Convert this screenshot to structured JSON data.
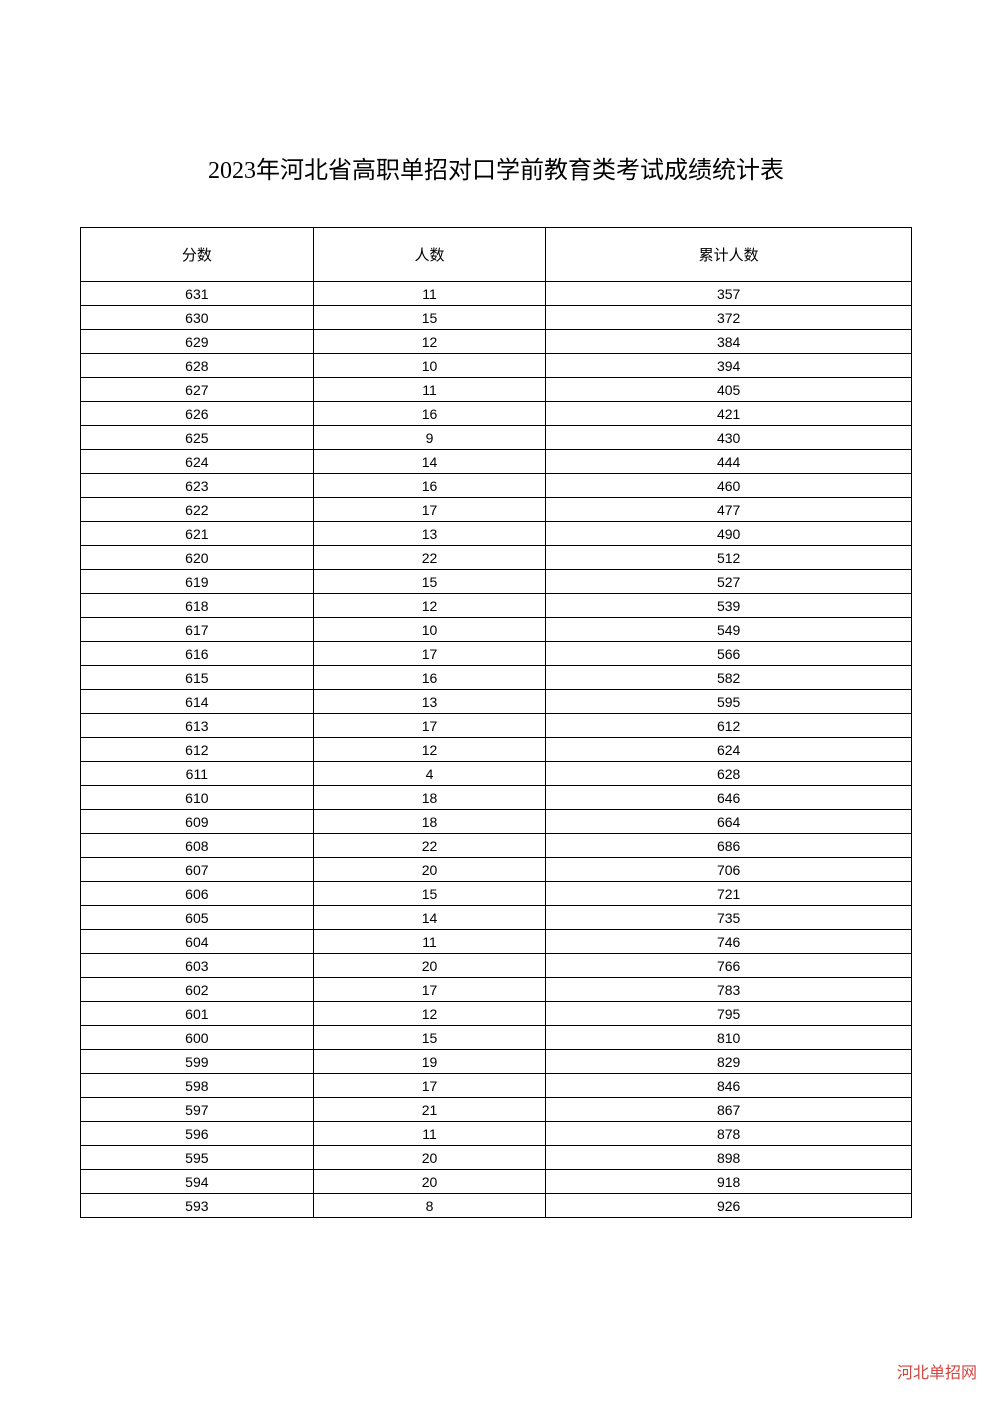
{
  "title": "2023年河北省高职单招对口学前教育类考试成绩统计表",
  "table": {
    "type": "table",
    "columns": [
      "分数",
      "人数",
      "累计人数"
    ],
    "column_widths": [
      "28%",
      "28%",
      "44%"
    ],
    "header_fontsize": 15,
    "cell_fontsize": 14,
    "border_color": "#000000",
    "background_color": "#ffffff",
    "text_color": "#000000",
    "rows": [
      [
        "631",
        "11",
        "357"
      ],
      [
        "630",
        "15",
        "372"
      ],
      [
        "629",
        "12",
        "384"
      ],
      [
        "628",
        "10",
        "394"
      ],
      [
        "627",
        "11",
        "405"
      ],
      [
        "626",
        "16",
        "421"
      ],
      [
        "625",
        "9",
        "430"
      ],
      [
        "624",
        "14",
        "444"
      ],
      [
        "623",
        "16",
        "460"
      ],
      [
        "622",
        "17",
        "477"
      ],
      [
        "621",
        "13",
        "490"
      ],
      [
        "620",
        "22",
        "512"
      ],
      [
        "619",
        "15",
        "527"
      ],
      [
        "618",
        "12",
        "539"
      ],
      [
        "617",
        "10",
        "549"
      ],
      [
        "616",
        "17",
        "566"
      ],
      [
        "615",
        "16",
        "582"
      ],
      [
        "614",
        "13",
        "595"
      ],
      [
        "613",
        "17",
        "612"
      ],
      [
        "612",
        "12",
        "624"
      ],
      [
        "611",
        "4",
        "628"
      ],
      [
        "610",
        "18",
        "646"
      ],
      [
        "609",
        "18",
        "664"
      ],
      [
        "608",
        "22",
        "686"
      ],
      [
        "607",
        "20",
        "706"
      ],
      [
        "606",
        "15",
        "721"
      ],
      [
        "605",
        "14",
        "735"
      ],
      [
        "604",
        "11",
        "746"
      ],
      [
        "603",
        "20",
        "766"
      ],
      [
        "602",
        "17",
        "783"
      ],
      [
        "601",
        "12",
        "795"
      ],
      [
        "600",
        "15",
        "810"
      ],
      [
        "599",
        "19",
        "829"
      ],
      [
        "598",
        "17",
        "846"
      ],
      [
        "597",
        "21",
        "867"
      ],
      [
        "596",
        "11",
        "878"
      ],
      [
        "595",
        "20",
        "898"
      ],
      [
        "594",
        "20",
        "918"
      ],
      [
        "593",
        "8",
        "926"
      ]
    ]
  },
  "watermark": {
    "text": "河北单招网",
    "color": "#d4453e",
    "fontsize": 16
  }
}
